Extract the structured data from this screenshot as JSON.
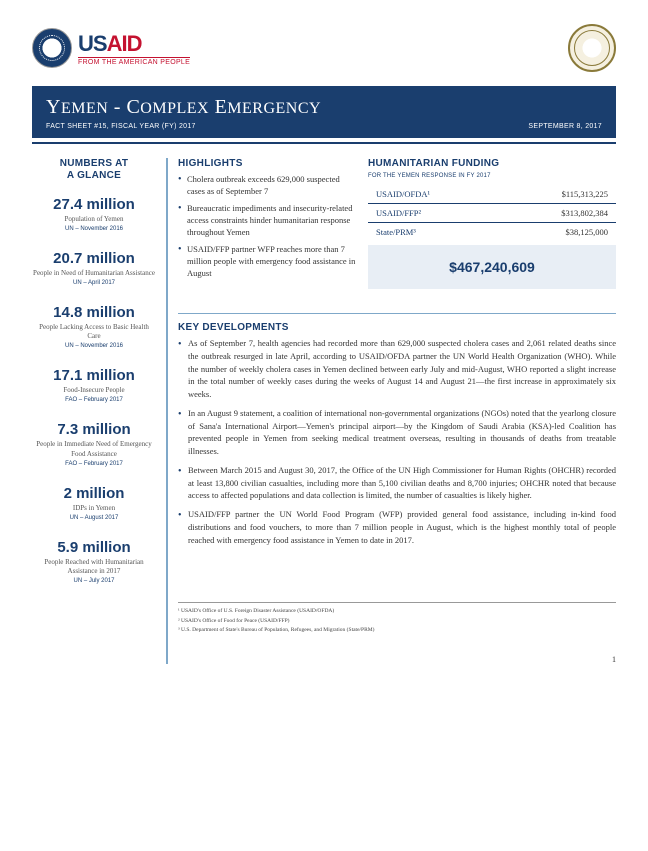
{
  "logo": {
    "usaid_main_1": "US",
    "usaid_main_2": "AID",
    "usaid_sub": "FROM THE AMERICAN PEOPLE"
  },
  "title": {
    "main": "YEMEN - COMPLEX EMERGENCY",
    "sub_left": "FACT SHEET #15, FISCAL YEAR (FY) 2017",
    "sub_right": "SEPTEMBER 8, 2017"
  },
  "glance": {
    "title_line1": "NUMBERS AT",
    "title_line2": "A GLANCE",
    "stats": [
      {
        "num": "27.4 million",
        "desc": "Population of Yemen",
        "src": "UN – November 2016"
      },
      {
        "num": "20.7 million",
        "desc": "People in Need of Humanitarian Assistance",
        "src": "UN – April 2017"
      },
      {
        "num": "14.8 million",
        "desc": "People Lacking Access to Basic Health Care",
        "src": "UN – November 2016"
      },
      {
        "num": "17.1 million",
        "desc": "Food-Insecure People",
        "src": "FAO – February 2017"
      },
      {
        "num": "7.3 million",
        "desc": "People in Immediate Need of Emergency Food Assistance",
        "src": "FAO – February 2017"
      },
      {
        "num": "2 million",
        "desc": "IDPs in Yemen",
        "src": "UN – August 2017"
      },
      {
        "num": "5.9 million",
        "desc": "People Reached with Humanitarian Assistance in 2017",
        "src": "UN – July 2017"
      }
    ]
  },
  "highlights": {
    "title": "HIGHLIGHTS",
    "items": [
      "Cholera outbreak exceeds 629,000 suspected cases as of September 7",
      "Bureaucratic impediments and insecurity-related access constraints hinder humanitarian response throughout Yemen",
      "USAID/FFP partner WFP reaches more than 7 million people with emergency food assistance in August"
    ]
  },
  "funding": {
    "title": "HUMANITARIAN FUNDING",
    "sub": "FOR THE YEMEN RESPONSE IN FY 2017",
    "rows": [
      {
        "label": "USAID/OFDA¹",
        "val": "$115,313,225"
      },
      {
        "label": "USAID/FFP²",
        "val": "$313,802,384"
      },
      {
        "label": "State/PRM³",
        "val": "$38,125,000"
      }
    ],
    "total": "$467,240,609"
  },
  "key_dev": {
    "title": "KEY DEVELOPMENTS",
    "items": [
      "As of September 7, health agencies had recorded more than 629,000 suspected cholera cases and 2,061 related deaths since the outbreak resurged in late April, according to USAID/OFDA partner the UN World Health Organization (WHO). While the number of weekly cholera cases in Yemen declined between early July and mid-August, WHO reported a slight increase in the total number of weekly cases during the weeks of August 14 and August 21—the first increase in approximately six weeks.",
      "In an August 9 statement, a coalition of international non-governmental organizations (NGOs) noted that the yearlong closure of Sana'a International Airport—Yemen's principal airport—by the Kingdom of Saudi Arabia (KSA)-led Coalition has prevented people in Yemen from seeking medical treatment overseas, resulting in thousands of deaths from treatable illnesses.",
      "Between March 2015 and August 30, 2017, the Office of the UN High Commissioner for Human Rights (OHCHR) recorded at least 13,800 civilian casualties, including more than 5,100 civilian deaths and 8,700 injuries; OHCHR noted that because access to affected populations and data collection is limited, the number of casualties is likely higher.",
      "USAID/FFP partner the UN World Food Program (WFP) provided general food assistance, including in-kind food distributions and food vouchers, to more than 7 million people in August, which is the highest monthly total of people reached with emergency food assistance in Yemen to date in 2017."
    ]
  },
  "footnotes": [
    "¹ USAID's Office of U.S. Foreign Disaster Assistance (USAID/OFDA)",
    "² USAID's Office of Food for Peace (USAID/FFP)",
    "³ U.S. Department of State's Bureau of Population, Refugees, and Migration (State/PRM)"
  ],
  "page_num": "1"
}
